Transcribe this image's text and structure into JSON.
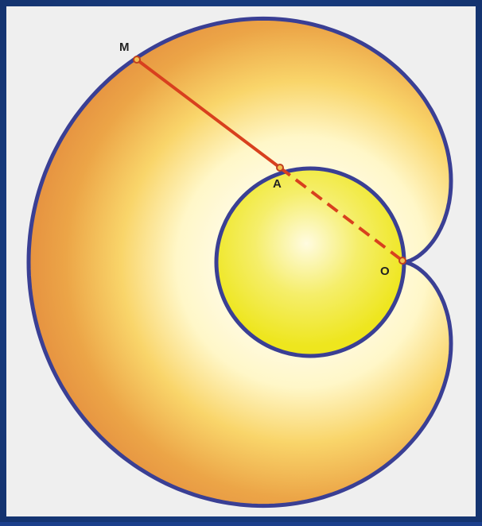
{
  "points": {
    "m": "M",
    "a": "A",
    "o": "O"
  }
}
